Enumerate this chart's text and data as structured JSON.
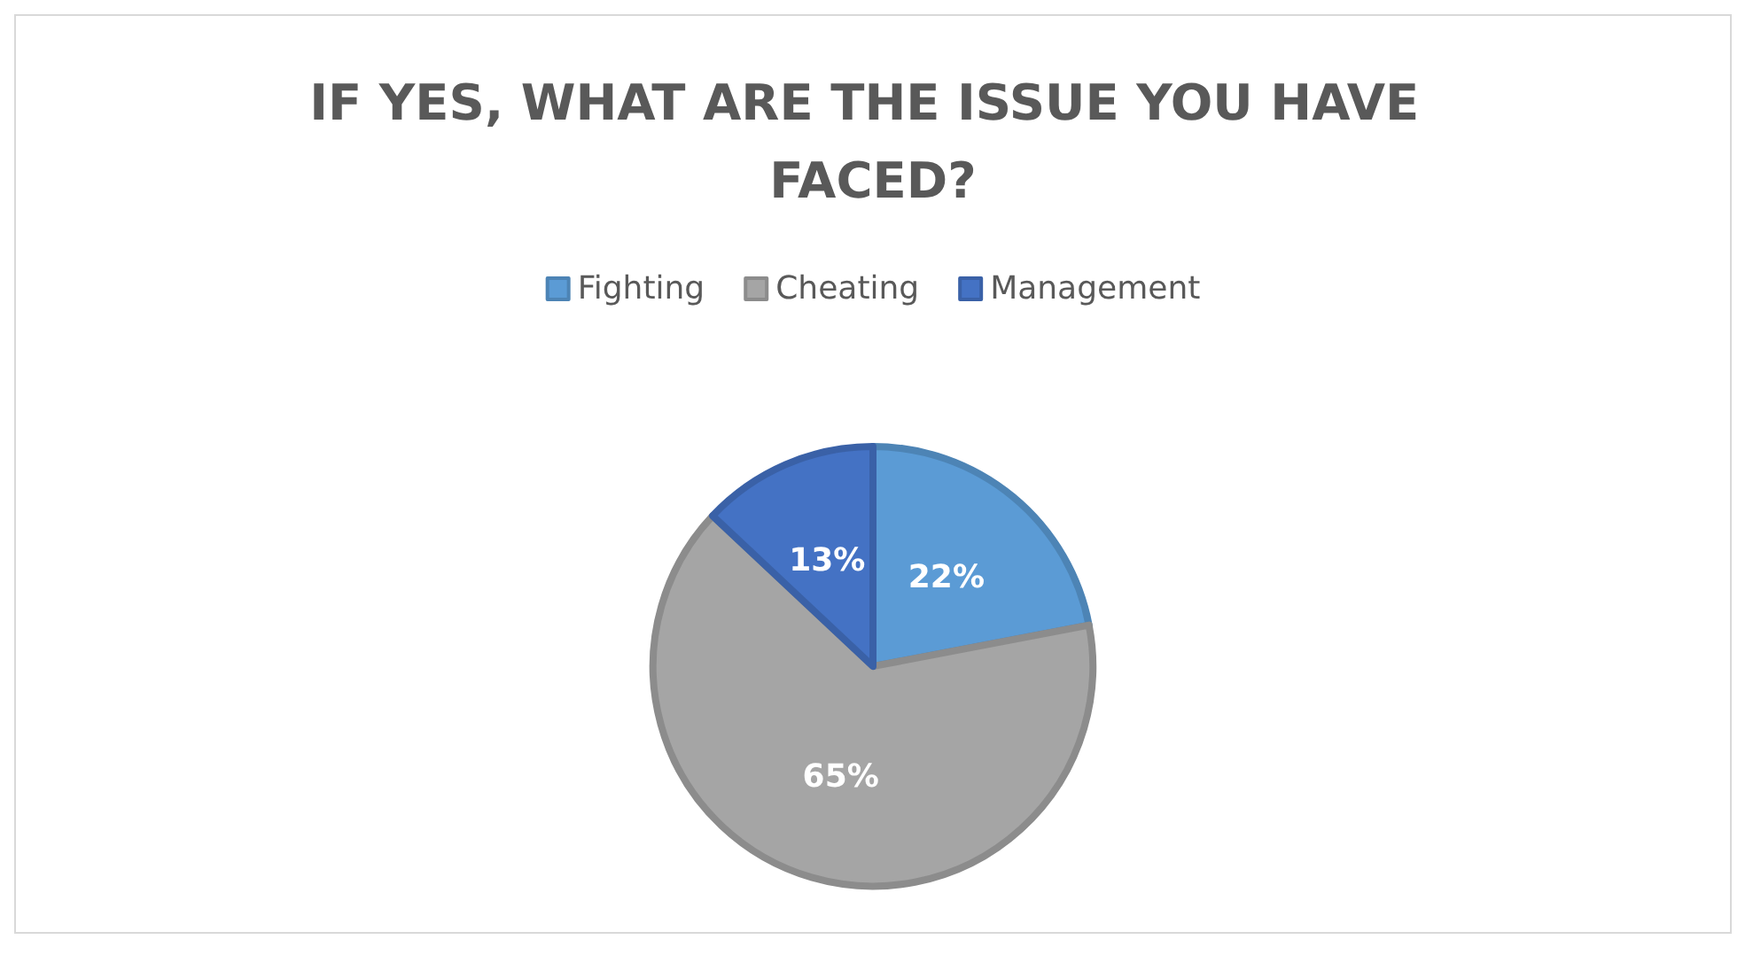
{
  "chart_data": {
    "type": "pie",
    "title": "IF YES, WHAT ARE THE ISSUE YOU HAVE FACED?",
    "categories": [
      "Fighting",
      "Cheating",
      "Management"
    ],
    "values": [
      22,
      65,
      13
    ],
    "colors": [
      "#5b9bd5",
      "#a5a5a5",
      "#4472c4"
    ],
    "value_labels": [
      "22%",
      "65%",
      "13%"
    ],
    "legend": "top"
  }
}
